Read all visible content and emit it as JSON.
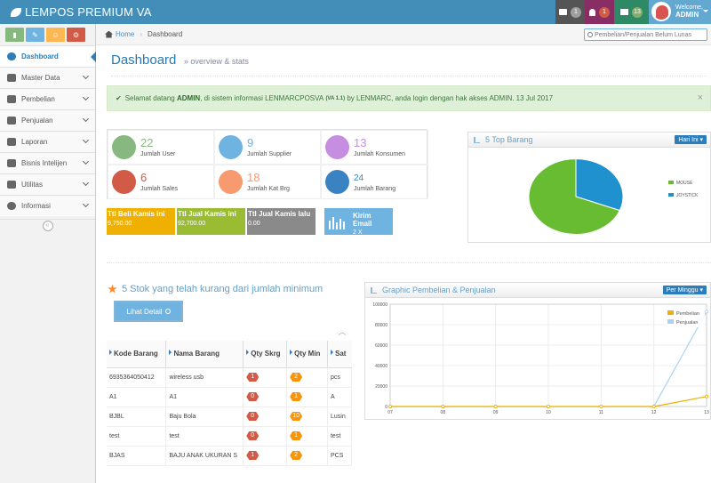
{
  "header": {
    "brand": "LEMPOS PREMIUM VA",
    "badges": [
      {
        "icon": "tasks-icon",
        "count": "1",
        "bg": "#555555",
        "badge_bg": "#9e9e9e"
      },
      {
        "icon": "bell-icon",
        "count": "1",
        "bg": "#892e65",
        "badge_bg": "#d15b47"
      },
      {
        "icon": "envelope-icon",
        "count": "13",
        "bg": "#2e8965",
        "badge_bg": "#82af6f"
      }
    ],
    "user": {
      "welcome": "Welcome,",
      "name": "ADMIN"
    }
  },
  "sidebar": {
    "shortcuts": [
      {
        "icon": "signal-icon",
        "color": "#87b87f"
      },
      {
        "icon": "pencil-icon",
        "color": "#6fb3e0"
      },
      {
        "icon": "users-icon",
        "color": "#ffb752"
      },
      {
        "icon": "cogs-icon",
        "color": "#d15b47"
      }
    ],
    "items": [
      {
        "label": "Dashboard",
        "active": true
      },
      {
        "label": "Master Data"
      },
      {
        "label": "Pembelian"
      },
      {
        "label": "Penjualan"
      },
      {
        "label": "Laporan"
      },
      {
        "label": "Bisnis Intelijen"
      },
      {
        "label": "Utilitas"
      },
      {
        "label": "Informasi"
      }
    ]
  },
  "breadcrumb": {
    "home": "Home",
    "current": "Dashboard"
  },
  "search": {
    "placeholder": "Pembelian/Penjualan Belum Lunas"
  },
  "page": {
    "title": "Dashboard",
    "subtitle": "» overview & stats"
  },
  "alert": {
    "pre": "Selamat datang",
    "user": "ADMIN",
    "mid": ", di sistem informasi LENMARCPOSVA",
    "version": "(VA 1.1)",
    "post": "by LENMARC, anda login dengan hak akses ADMIN. 13 Jul 2017",
    "close": "×"
  },
  "infoboxes": [
    {
      "value": "22",
      "label": "Jumlah User",
      "color": "#87b87f"
    },
    {
      "value": "9",
      "label": "Jumlah Supplier",
      "color": "#6fb3e0"
    },
    {
      "value": "13",
      "label": "Jumlah Konsumen",
      "color": "#c58ee0"
    },
    {
      "value": "6",
      "label": "Jumlah Sales",
      "color": "#d15b47"
    },
    {
      "value": "18",
      "label": "Jumlah Kat Brg",
      "color": "#f89a6f"
    },
    {
      "value": "24",
      "label": "Jumlah Barang",
      "color": "#3983c2"
    }
  ],
  "statbars": [
    {
      "label": "Ttl Beli Kamis ini",
      "value": "9,750.00",
      "color": "#f0b000"
    },
    {
      "label": "Ttl Jual Kamis ini",
      "value": "92,700.00",
      "color": "#9abc32"
    },
    {
      "label": "Ttl Jual Kamis lalu",
      "value": "0.00",
      "color": "#8a8a8a"
    }
  ],
  "kirim": {
    "label": "Kirim Email",
    "value": "2 X",
    "color": "#6fb3e0"
  },
  "top_barang": {
    "title": "5 Top Barang",
    "filter": "Hari Ini",
    "legend": [
      {
        "label": "MOUSE",
        "color": "#68bc31"
      },
      {
        "label": "JOYSTICK",
        "color": "#2091cf"
      }
    ]
  },
  "stok": {
    "title": "5 Stok yang telah kurang dari jumlah minimum",
    "button": "Lihat Detail",
    "headers": [
      "Kode Barang",
      "Nama Barang",
      "Qty Skrg",
      "Qty Min",
      "Sat"
    ],
    "rows": [
      {
        "kode": "6935364050412",
        "nama": "wireless usb",
        "skrg": "1",
        "min": "2",
        "sat": "pcs"
      },
      {
        "kode": "A1",
        "nama": "A1",
        "skrg": "0",
        "min": "1",
        "sat": "A"
      },
      {
        "kode": "BJBL",
        "nama": "Baju Bola",
        "skrg": "0",
        "min": "10",
        "sat": "Lusin"
      },
      {
        "kode": "test",
        "nama": "test",
        "skrg": "0",
        "min": "1",
        "sat": "test"
      },
      {
        "kode": "BJAS",
        "nama": "BAJU ANAK UKURAN S",
        "skrg": "1",
        "min": "2",
        "sat": "PCS"
      }
    ]
  },
  "graphic": {
    "title": "Graphic Pembelian & Penjualan",
    "filter": "Per Minggu"
  },
  "chart_data": [
    {
      "type": "pie",
      "title": "5 Top Barang",
      "categories": [
        "MOUSE",
        "JOYSTICK"
      ],
      "values": [
        69,
        31
      ],
      "colors": [
        "#68bc31",
        "#2091cf"
      ],
      "legend": "right"
    },
    {
      "type": "line",
      "title": "Graphic Pembelian & Penjualan",
      "x": [
        "07",
        "08",
        "09",
        "10",
        "11",
        "12",
        "13"
      ],
      "series": [
        {
          "name": "Pembelian",
          "values": [
            0,
            0,
            0,
            0,
            0,
            0,
            9750
          ],
          "color": "#f0b000"
        },
        {
          "name": "Penjualan",
          "values": [
            0,
            0,
            0,
            0,
            0,
            0,
            92700
          ],
          "color": "#a9d3f5"
        }
      ],
      "ylim": [
        0,
        100000
      ],
      "yticks": [
        "0",
        "20000",
        "40000",
        "60000",
        "80000",
        "100000"
      ],
      "grid": true,
      "legend": "top-right"
    }
  ]
}
